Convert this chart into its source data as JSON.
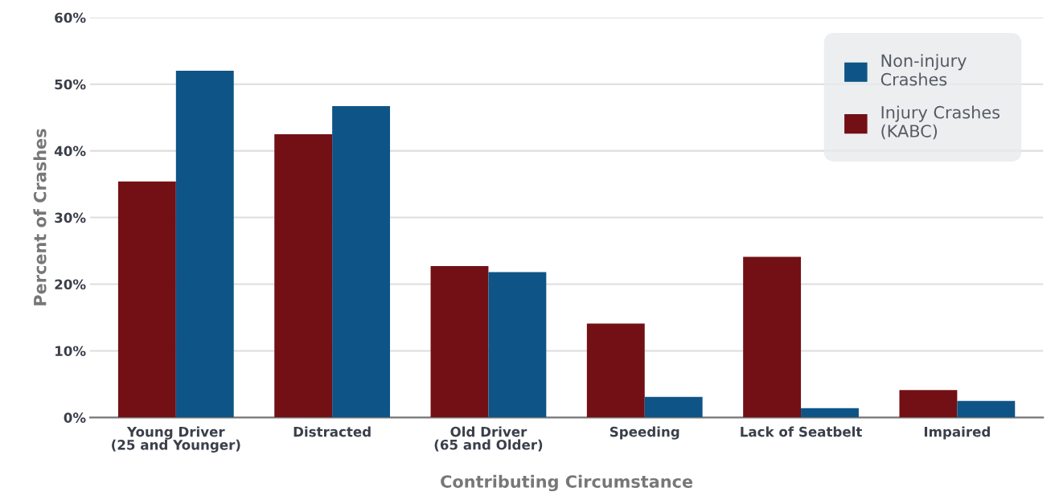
{
  "chart_data": {
    "type": "bar",
    "xlabel": "Contributing Circumstance",
    "ylabel": "Percent of Crashes",
    "categories": [
      "Young Driver\n(25 and Younger)",
      "Distracted",
      "Old Driver\n(65 and Older)",
      "Speeding",
      "Lack of Seatbelt",
      "Impaired"
    ],
    "series": [
      {
        "name": "Injury Crashes\n(KABC)",
        "color": "#721015",
        "values": [
          35.4,
          42.5,
          22.7,
          14.1,
          24.1,
          4.1
        ]
      },
      {
        "name": "Non-injury\nCrashes",
        "color": "#0f5486",
        "values": [
          52.0,
          46.7,
          21.8,
          3.1,
          1.4,
          2.5
        ]
      }
    ],
    "ylim": [
      0,
      60
    ],
    "yticks": [
      {
        "value": 0,
        "label": "0%"
      },
      {
        "value": 10,
        "label": "10%"
      },
      {
        "value": 20,
        "label": "20%"
      },
      {
        "value": 30,
        "label": "30%"
      },
      {
        "value": 40,
        "label": "40%"
      },
      {
        "value": 50,
        "label": "50%"
      },
      {
        "value": 60,
        "label": "60%"
      }
    ],
    "grid": "y",
    "legend": "top right"
  }
}
